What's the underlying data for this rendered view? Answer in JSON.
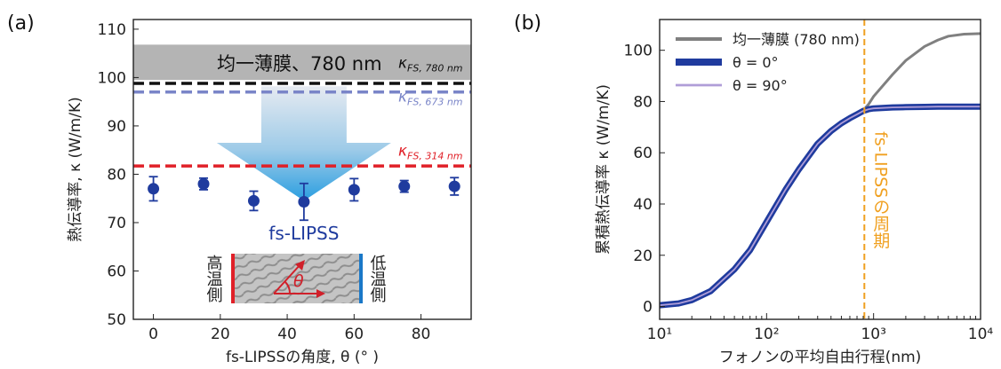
{
  "chart_data": [
    {
      "type": "scatter",
      "panel_label": "(a)",
      "xlabel": "fs-LIPSSの角度, θ (° )",
      "ylabel": "熱伝導率, κ (W/m/K)",
      "xlim": [
        -6,
        95
      ],
      "ylim": [
        50,
        112
      ],
      "xticks": [
        0,
        20,
        40,
        60,
        80
      ],
      "yticks": [
        50,
        60,
        70,
        80,
        90,
        100,
        110
      ],
      "series": [
        {
          "x": [
            0,
            15,
            30,
            45,
            60,
            75,
            90
          ],
          "y": [
            77,
            78,
            74.5,
            74.3,
            76.8,
            77.5,
            77.5
          ],
          "err": [
            2.5,
            1.2,
            2,
            3.8,
            2.3,
            1.2,
            1.8
          ]
        }
      ],
      "reference_lines": [
        {
          "label": "κFS, 780 nm",
          "symbol": "κ",
          "sub": "FS, 780 nm",
          "y": 98.8,
          "color": "#111111"
        },
        {
          "label": "κFS, 673 nm",
          "symbol": "κ",
          "sub": "FS, 673 nm",
          "y": 97,
          "color": "#7a85c8"
        },
        {
          "label": "κFS, 314 nm",
          "symbol": "κ",
          "sub": "FS, 314 nm",
          "y": 81.7,
          "color": "#e02028"
        }
      ],
      "band": {
        "label": "均一薄膜、780 nm",
        "y_range": [
          99.5,
          106.8
        ],
        "color": "#b4b4b4"
      },
      "arrow_label": "fs-LIPSS",
      "inset": {
        "left_label": "高温側",
        "right_label": "低温側",
        "angle_symbol": "θ"
      }
    },
    {
      "type": "line",
      "panel_label": "(b)",
      "xlabel": "フォノンの平均自由行程(nm)",
      "ylabel": "累積熱伝導率 κ (W/m/K)",
      "xscale": "log",
      "xlim": [
        10,
        10000
      ],
      "ylim": [
        -5,
        112
      ],
      "xticks": [
        "10¹",
        "10²",
        "10³",
        "10⁴"
      ],
      "yticks": [
        0,
        20,
        40,
        60,
        80,
        100
      ],
      "x": [
        10,
        15,
        20,
        30,
        50,
        70,
        100,
        150,
        200,
        300,
        400,
        500,
        600,
        700,
        800,
        900,
        1000,
        1500,
        2000,
        3000,
        4000,
        5000,
        7000,
        10000
      ],
      "series": [
        {
          "name": "均一薄膜 (780 nm)",
          "color": "#808080",
          "values": [
            0.5,
            1.2,
            2.5,
            6,
            14.5,
            22,
            33,
            45.5,
            53.5,
            63.5,
            68.5,
            71.5,
            73.5,
            75,
            76.5,
            79,
            82,
            90.5,
            96,
            101.5,
            104,
            105.5,
            106.3,
            106.5
          ]
        },
        {
          "name": "θ = 0°",
          "color": "#1f3b9e",
          "values": [
            0.5,
            1.2,
            2.5,
            6,
            14.5,
            22,
            33,
            45.5,
            53.5,
            63.5,
            68.5,
            71.5,
            73.5,
            75,
            76.3,
            77,
            77.3,
            77.7,
            77.8,
            77.9,
            78,
            78,
            78,
            78
          ]
        },
        {
          "name": "θ = 90°",
          "color": "#b09ed8",
          "values": [
            0.5,
            1.2,
            2.5,
            6,
            14.5,
            22,
            33,
            45.5,
            53.5,
            63.5,
            68.5,
            71.5,
            73.5,
            75,
            76.3,
            77,
            77.3,
            77.7,
            77.8,
            77.9,
            78,
            78,
            78,
            78
          ]
        }
      ],
      "vline": {
        "x": 820,
        "label": "fs-LIPSSの周期",
        "color": "#f0a020"
      }
    }
  ]
}
